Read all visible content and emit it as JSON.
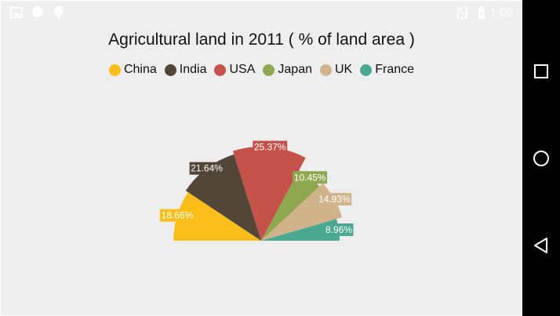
{
  "status_bar": {
    "time": "1:00",
    "left_icons": [
      "image-icon",
      "chat-icon",
      "android-icon"
    ],
    "right_icons": [
      "signal-off-icon",
      "battery-icon"
    ]
  },
  "nav_bar": {
    "buttons": [
      "recents-square-icon",
      "home-circle-icon",
      "back-triangle-icon"
    ]
  },
  "chart_data": {
    "type": "pie",
    "subtype": "semi-pie",
    "title": "Agricultural land in 2011 ( % of land area )",
    "legend_position": "top",
    "start_angle": 180,
    "end_angle": 360,
    "categories": [
      "China",
      "India",
      "USA",
      "Japan",
      "UK",
      "France"
    ],
    "values": [
      18.66,
      21.64,
      25.37,
      10.45,
      14.93,
      8.96
    ],
    "data_labels": [
      "18.66%",
      "21.64%",
      "25.37%",
      "10.45%",
      "14.93%",
      "8.96%"
    ],
    "colors": [
      "#fbbd19",
      "#514637",
      "#c4524a",
      "#8fa84f",
      "#d1b38b",
      "#4ba992"
    ],
    "label_placement": "outside"
  }
}
